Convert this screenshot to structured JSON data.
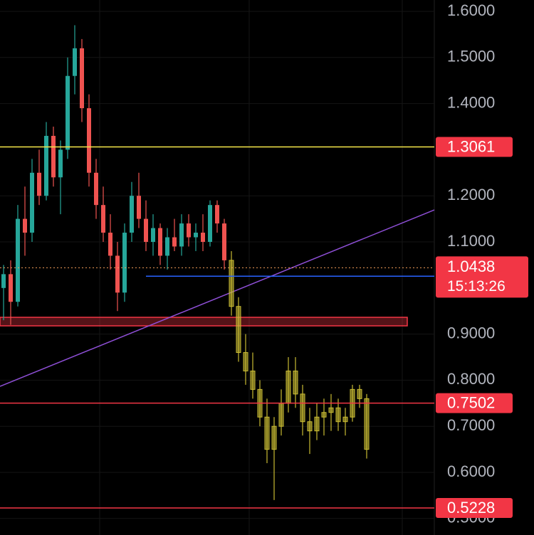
{
  "chart_data": {
    "type": "candlestick",
    "ylim": [
      0.4642,
      1.6247
    ],
    "yticks": [
      {
        "value": 1.6,
        "label": "1.6000"
      },
      {
        "value": 1.5,
        "label": "1.5000"
      },
      {
        "value": 1.4,
        "label": "1.4000"
      },
      {
        "value": 1.2,
        "label": "1.2000"
      },
      {
        "value": 1.1,
        "label": "1.1000"
      },
      {
        "value": 0.9,
        "label": "0.9000"
      },
      {
        "value": 0.8,
        "label": "0.8000"
      },
      {
        "value": 0.7,
        "label": "0.7000"
      },
      {
        "value": 0.6,
        "label": "0.6000"
      },
      {
        "value": 0.5,
        "label": "0.5000"
      }
    ],
    "series": [
      {
        "color_up": "#26a69a",
        "color_down": "#ef5350",
        "open": [
          1.0,
          1.03,
          0.97,
          1.15,
          1.12,
          1.25,
          1.2,
          1.33,
          1.24,
          1.3,
          1.46,
          1.52,
          1.39,
          1.25,
          1.18,
          1.12,
          1.07,
          0.99,
          1.12,
          1.2,
          1.15,
          1.1,
          1.13,
          1.07,
          1.11,
          1.09,
          1.14,
          1.11,
          1.12,
          1.1,
          1.18,
          1.14
        ],
        "high": [
          1.05,
          1.06,
          1.18,
          1.22,
          1.28,
          1.3,
          1.36,
          1.35,
          1.32,
          1.5,
          1.57,
          1.54,
          1.42,
          1.28,
          1.22,
          1.16,
          1.1,
          1.14,
          1.23,
          1.25,
          1.19,
          1.16,
          1.14,
          1.13,
          1.15,
          1.16,
          1.16,
          1.14,
          1.16,
          1.19,
          1.19,
          1.15
        ],
        "low": [
          0.93,
          0.92,
          0.96,
          1.07,
          1.1,
          1.18,
          1.19,
          1.22,
          1.16,
          1.28,
          1.42,
          1.36,
          1.22,
          1.15,
          1.1,
          1.04,
          0.95,
          0.97,
          1.1,
          1.13,
          1.08,
          1.07,
          1.05,
          1.04,
          1.08,
          1.07,
          1.09,
          1.08,
          1.08,
          1.09,
          1.12,
          1.04
        ],
        "close": [
          1.03,
          0.97,
          1.15,
          1.12,
          1.25,
          1.2,
          1.33,
          1.24,
          1.3,
          1.46,
          1.52,
          1.39,
          1.25,
          1.18,
          1.12,
          1.07,
          0.99,
          1.12,
          1.2,
          1.15,
          1.1,
          1.13,
          1.07,
          1.11,
          1.09,
          1.14,
          1.11,
          1.12,
          1.1,
          1.18,
          1.14,
          1.06
        ]
      },
      {
        "color_up": "#c8bb33",
        "color_down": "#c8bb33",
        "open": [
          1.06,
          0.96,
          0.86,
          0.82,
          0.78,
          0.72,
          0.65,
          0.7,
          0.75,
          0.82,
          0.77,
          0.71,
          0.69,
          0.72,
          0.73,
          0.74,
          0.71,
          0.72,
          0.78,
          0.76
        ],
        "high": [
          1.08,
          0.98,
          0.9,
          0.86,
          0.8,
          0.76,
          0.72,
          0.78,
          0.85,
          0.85,
          0.79,
          0.74,
          0.75,
          0.76,
          0.77,
          0.76,
          0.74,
          0.79,
          0.79,
          0.77
        ],
        "low": [
          0.94,
          0.84,
          0.79,
          0.76,
          0.7,
          0.62,
          0.54,
          0.68,
          0.73,
          0.74,
          0.68,
          0.64,
          0.67,
          0.68,
          0.69,
          0.69,
          0.68,
          0.71,
          0.74,
          0.63
        ],
        "close": [
          0.96,
          0.86,
          0.82,
          0.78,
          0.72,
          0.65,
          0.7,
          0.75,
          0.82,
          0.77,
          0.71,
          0.69,
          0.72,
          0.73,
          0.74,
          0.71,
          0.72,
          0.78,
          0.76,
          0.65
        ]
      }
    ],
    "levels": [
      {
        "value": 1.3061,
        "color": "#f5e74a",
        "tag_color": "#f23645"
      },
      {
        "value": 1.0255,
        "color": "#2962ff",
        "tag_color": "#2962ff"
      },
      {
        "value": 0.7502,
        "color": "#f23645",
        "tag_color": "#f23645"
      },
      {
        "value": 0.5228,
        "color": "#f23645",
        "tag_color": "#f23645"
      }
    ],
    "current_price": {
      "value": 1.0438,
      "countdown": "15:13:26",
      "color": "#f23645"
    },
    "zone": {
      "low": 0.9179,
      "high": 0.9364,
      "color": "#f23645"
    },
    "trendline": {
      "from": 0.7867,
      "to": 1.1694,
      "color": "#8e4fd6"
    }
  }
}
